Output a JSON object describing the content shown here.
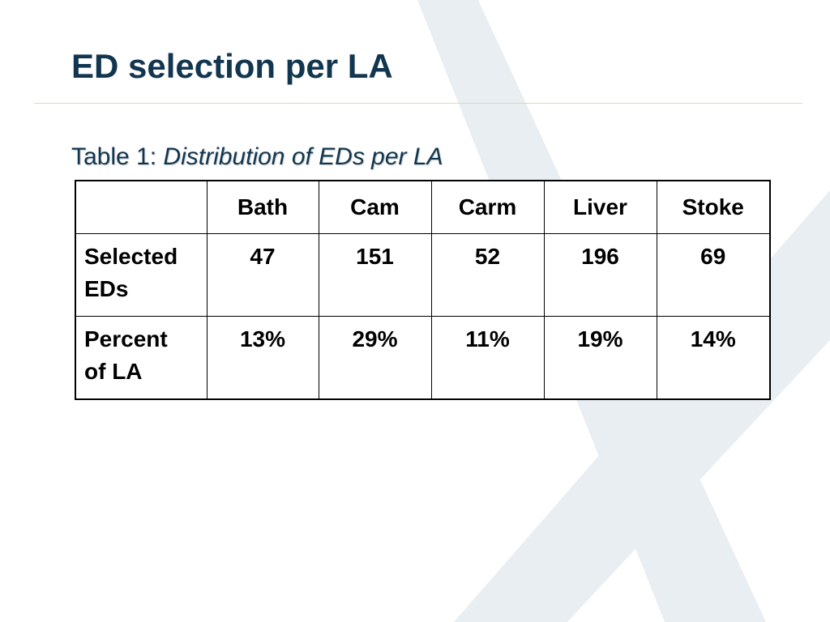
{
  "slide": {
    "title": "ED selection per LA",
    "caption_prefix": "Table 1: ",
    "caption_italic": "Distribution of EDs per LA"
  },
  "table": {
    "corner": "",
    "columns": [
      "Bath",
      "Cam",
      "Carm",
      "Liver",
      "Stoke"
    ],
    "rows": [
      {
        "label_line1": "Selected",
        "label_line2": "EDs",
        "values": [
          "47",
          "151",
          "52",
          "196",
          "69"
        ]
      },
      {
        "label_line1": "Percent",
        "label_line2": "of LA",
        "values": [
          "13%",
          "29%",
          "11%",
          "19%",
          "14%"
        ]
      }
    ]
  },
  "colors": {
    "title": "#12364f",
    "rule": "#d7dfa8",
    "background_mark": "#e9eef3"
  }
}
